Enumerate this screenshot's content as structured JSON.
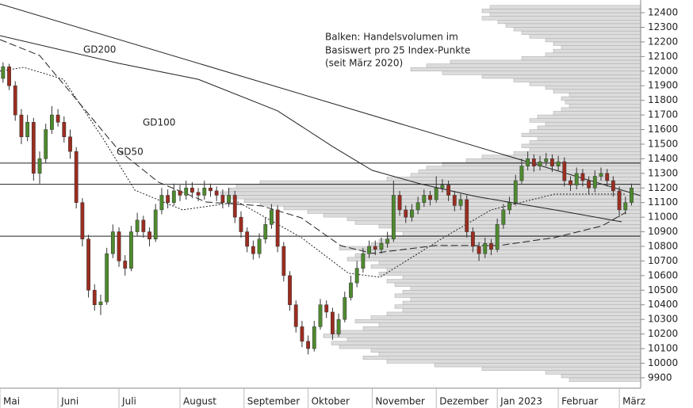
{
  "chart_data": {
    "type": "candlestick",
    "annotation": [
      "Balken: Handelsvolumen im",
      "Basiswert pro 25 Index-Punkte",
      "(seit März 2020)"
    ],
    "xlim": [
      0,
      105
    ],
    "xticks": [
      {
        "value": 0,
        "label": "Mai"
      },
      {
        "value": 9.5,
        "label": "Juni"
      },
      {
        "value": 19.5,
        "label": "Juli"
      },
      {
        "value": 29.5,
        "label": "August"
      },
      {
        "value": 40,
        "label": "September"
      },
      {
        "value": 50.5,
        "label": "Oktober"
      },
      {
        "value": 61,
        "label": "November"
      },
      {
        "value": 71.5,
        "label": "Dezember"
      },
      {
        "value": 81.5,
        "label": "Jan 2023"
      },
      {
        "value": 91.5,
        "label": "Februar"
      },
      {
        "value": 101.5,
        "label": "März"
      }
    ],
    "ylim": [
      9829,
      12487
    ],
    "yticks": [
      9900,
      10000,
      10100,
      10200,
      10300,
      10400,
      10500,
      10600,
      10700,
      10800,
      10900,
      11000,
      11100,
      11200,
      11300,
      11400,
      11500,
      11600,
      11700,
      11800,
      11900,
      12000,
      12100,
      12200,
      12300,
      12400
    ],
    "up_color": "#4e8a2e",
    "down_color": "#9b2d20",
    "candles": [
      [
        11950,
        12060,
        11920,
        12030
      ],
      [
        12030,
        12050,
        11870,
        11900
      ],
      [
        11900,
        11930,
        11660,
        11700
      ],
      [
        11700,
        11740,
        11500,
        11550
      ],
      [
        11550,
        11700,
        11520,
        11650
      ],
      [
        11650,
        11680,
        11250,
        11300
      ],
      [
        11300,
        11450,
        11230,
        11400
      ],
      [
        11400,
        11640,
        11370,
        11600
      ],
      [
        11600,
        11760,
        11570,
        11700
      ],
      [
        11700,
        11740,
        11620,
        11650
      ],
      [
        11650,
        11690,
        11510,
        11550
      ],
      [
        11550,
        11600,
        11400,
        11450
      ],
      [
        11450,
        11480,
        11060,
        11100
      ],
      [
        11100,
        11130,
        10800,
        10850
      ],
      [
        10850,
        10880,
        10450,
        10500
      ],
      [
        10500,
        10540,
        10360,
        10400
      ],
      [
        10400,
        10470,
        10330,
        10420
      ],
      [
        10420,
        10790,
        10400,
        10750
      ],
      [
        10750,
        10950,
        10720,
        10900
      ],
      [
        10900,
        10930,
        10660,
        10700
      ],
      [
        10700,
        10740,
        10600,
        10650
      ],
      [
        10650,
        10940,
        10630,
        10900
      ],
      [
        10900,
        11030,
        10870,
        10980
      ],
      [
        10980,
        11010,
        10860,
        10900
      ],
      [
        10900,
        10930,
        10800,
        10850
      ],
      [
        10850,
        11090,
        10830,
        11050
      ],
      [
        11050,
        11200,
        11020,
        11150
      ],
      [
        11150,
        11190,
        11060,
        11100
      ],
      [
        11100,
        11230,
        11080,
        11180
      ],
      [
        11180,
        11220,
        11110,
        11150
      ],
      [
        11150,
        11250,
        11120,
        11200
      ],
      [
        11200,
        11240,
        11130,
        11170
      ],
      [
        11170,
        11200,
        11110,
        11150
      ],
      [
        11150,
        11250,
        11120,
        11200
      ],
      [
        11200,
        11230,
        11140,
        11180
      ],
      [
        11180,
        11210,
        11110,
        11150
      ],
      [
        11150,
        11190,
        11060,
        11100
      ],
      [
        11100,
        11200,
        11070,
        11150
      ],
      [
        11150,
        11180,
        10960,
        11000
      ],
      [
        11000,
        11040,
        10860,
        10900
      ],
      [
        10900,
        10930,
        10760,
        10800
      ],
      [
        10800,
        10840,
        10710,
        10750
      ],
      [
        10750,
        10890,
        10720,
        10850
      ],
      [
        10850,
        11000,
        10820,
        10950
      ],
      [
        10950,
        11090,
        10920,
        11050
      ],
      [
        11050,
        11080,
        10760,
        10800
      ],
      [
        10800,
        10830,
        10560,
        10600
      ],
      [
        10600,
        10630,
        10360,
        10400
      ],
      [
        10400,
        10430,
        10210,
        10250
      ],
      [
        10250,
        10290,
        10110,
        10150
      ],
      [
        10150,
        10190,
        10060,
        10100
      ],
      [
        10100,
        10290,
        10080,
        10250
      ],
      [
        10250,
        10440,
        10230,
        10400
      ],
      [
        10400,
        10430,
        10310,
        10350
      ],
      [
        10350,
        10380,
        10160,
        10200
      ],
      [
        10200,
        10340,
        10180,
        10300
      ],
      [
        10300,
        10490,
        10280,
        10450
      ],
      [
        10450,
        10600,
        10430,
        10550
      ],
      [
        10550,
        10700,
        10520,
        10650
      ],
      [
        10650,
        10790,
        10620,
        10750
      ],
      [
        10750,
        10840,
        10720,
        10800
      ],
      [
        10800,
        10840,
        10740,
        10780
      ],
      [
        10780,
        10860,
        10750,
        10820
      ],
      [
        10820,
        10900,
        10790,
        10850
      ],
      [
        10850,
        11250,
        10830,
        11150
      ],
      [
        11150,
        11180,
        11010,
        11050
      ],
      [
        11050,
        11080,
        10960,
        11000
      ],
      [
        11000,
        11090,
        10970,
        11050
      ],
      [
        11050,
        11140,
        11020,
        11100
      ],
      [
        11100,
        11190,
        11070,
        11150
      ],
      [
        11150,
        11180,
        11080,
        11120
      ],
      [
        11120,
        11280,
        11100,
        11200
      ],
      [
        11200,
        11260,
        11170,
        11220
      ],
      [
        11220,
        11250,
        11110,
        11150
      ],
      [
        11150,
        11180,
        11040,
        11080
      ],
      [
        11080,
        11160,
        11050,
        11120
      ],
      [
        11120,
        11150,
        10860,
        10900
      ],
      [
        10900,
        10930,
        10760,
        10800
      ],
      [
        10800,
        10830,
        10700,
        10750
      ],
      [
        10750,
        10860,
        10720,
        10820
      ],
      [
        10820,
        10850,
        10740,
        10780
      ],
      [
        10780,
        10990,
        10760,
        10950
      ],
      [
        10950,
        11090,
        10920,
        11050
      ],
      [
        11050,
        11140,
        11020,
        11100
      ],
      [
        11100,
        11290,
        11080,
        11250
      ],
      [
        11250,
        11400,
        11230,
        11350
      ],
      [
        11350,
        11450,
        11320,
        11400
      ],
      [
        11400,
        11430,
        11310,
        11350
      ],
      [
        11350,
        11420,
        11320,
        11380
      ],
      [
        11380,
        11440,
        11350,
        11400
      ],
      [
        11400,
        11430,
        11310,
        11350
      ],
      [
        11350,
        11420,
        11320,
        11380
      ],
      [
        11380,
        11410,
        11210,
        11250
      ],
      [
        11250,
        11280,
        11180,
        11220
      ],
      [
        11220,
        11340,
        11190,
        11300
      ],
      [
        11300,
        11330,
        11210,
        11250
      ],
      [
        11250,
        11280,
        11160,
        11200
      ],
      [
        11200,
        11320,
        11170,
        11280
      ],
      [
        11280,
        11340,
        11250,
        11300
      ],
      [
        11300,
        11330,
        11210,
        11250
      ],
      [
        11250,
        11280,
        11140,
        11180
      ],
      [
        11180,
        11210,
        11000,
        11050
      ],
      [
        11050,
        11140,
        11020,
        11100
      ],
      [
        11100,
        11230,
        11080,
        11200
      ]
    ],
    "moving_averages": [
      {
        "name": "GD200",
        "dash": "none",
        "x": [
          0,
          19.5,
          32.5,
          45.5,
          54.5,
          61,
          68.8,
          77.9,
          90.9,
          101.9
        ],
        "values": [
          12243,
          12053,
          11944,
          11728,
          11484,
          11321,
          11229,
          11142,
          11050,
          10968
        ]
      },
      {
        "name": "GD100",
        "dash": "9 4",
        "x": [
          0,
          6.5,
          13,
          19.5,
          26,
          33.8,
          42.9,
          49.4,
          55.8,
          61,
          71.4,
          81.8,
          90.9,
          98.7,
          102.6
        ],
        "values": [
          12216,
          12107,
          11782,
          11456,
          11239,
          11104,
          11077,
          10995,
          10806,
          10752,
          10806,
          10806,
          10860,
          10941,
          11033
        ]
      },
      {
        "name": "GD50",
        "dash": "2 2",
        "x": [
          0,
          3.9,
          10.4,
          16.9,
          22.1,
          29.9,
          39,
          49.4,
          57.1,
          62.3,
          72.7,
          80.5,
          90.9,
          102.6
        ],
        "values": [
          12000,
          12026,
          11944,
          11538,
          11185,
          11050,
          11104,
          10860,
          10616,
          10589,
          10860,
          11050,
          11158,
          11158
        ]
      }
    ],
    "trendline": {
      "x": [
        0,
        105
      ],
      "values": [
        12460,
        11147
      ]
    },
    "levels": [
      11370,
      11225,
      10870
    ],
    "volume_profile": {
      "color": "#dcdcdc",
      "bins": [
        9875,
        9900,
        9925,
        9950,
        9975,
        10000,
        10025,
        10050,
        10075,
        10100,
        10125,
        10150,
        10175,
        10200,
        10225,
        10250,
        10275,
        10300,
        10325,
        10350,
        10375,
        10400,
        10425,
        10450,
        10475,
        10500,
        10525,
        10550,
        10575,
        10600,
        10625,
        10650,
        10675,
        10700,
        10725,
        10750,
        10775,
        10800,
        10825,
        10850,
        10875,
        10900,
        10925,
        10950,
        10975,
        11000,
        11025,
        11050,
        11075,
        11100,
        11125,
        11150,
        11175,
        11200,
        11225,
        11250,
        11275,
        11300,
        11325,
        11350,
        11375,
        11400,
        11425,
        11450,
        11475,
        11500,
        11525,
        11550,
        11575,
        11600,
        11625,
        11650,
        11675,
        11700,
        11725,
        11750,
        11775,
        11800,
        11825,
        11850,
        11875,
        11900,
        11925,
        11950,
        11975,
        12000,
        12025,
        12050,
        12075,
        12100,
        12125,
        12150,
        12175,
        12200,
        12225,
        12250,
        12275,
        12300,
        12325,
        12350,
        12375,
        12400,
        12425,
        12450
      ],
      "values": [
        90,
        100,
        120,
        200,
        260,
        320,
        350,
        330,
        340,
        380,
        390,
        370,
        400,
        390,
        350,
        330,
        360,
        340,
        320,
        300,
        310,
        300,
        290,
        310,
        300,
        290,
        310,
        320,
        300,
        330,
        320,
        340,
        330,
        370,
        360,
        350,
        380,
        340,
        330,
        320,
        300,
        310,
        330,
        360,
        370,
        400,
        420,
        450,
        480,
        500,
        520,
        530,
        520,
        510,
        480,
        320,
        290,
        280,
        270,
        250,
        220,
        200,
        160,
        140,
        150,
        140,
        130,
        150,
        140,
        130,
        120,
        140,
        130,
        110,
        100,
        90,
        95,
        100,
        90,
        110,
        120,
        140,
        160,
        200,
        250,
        290,
        270,
        240,
        150,
        120,
        110,
        100,
        110,
        120,
        140,
        150,
        160,
        170,
        180,
        200,
        190,
        200,
        190
      ]
    }
  }
}
